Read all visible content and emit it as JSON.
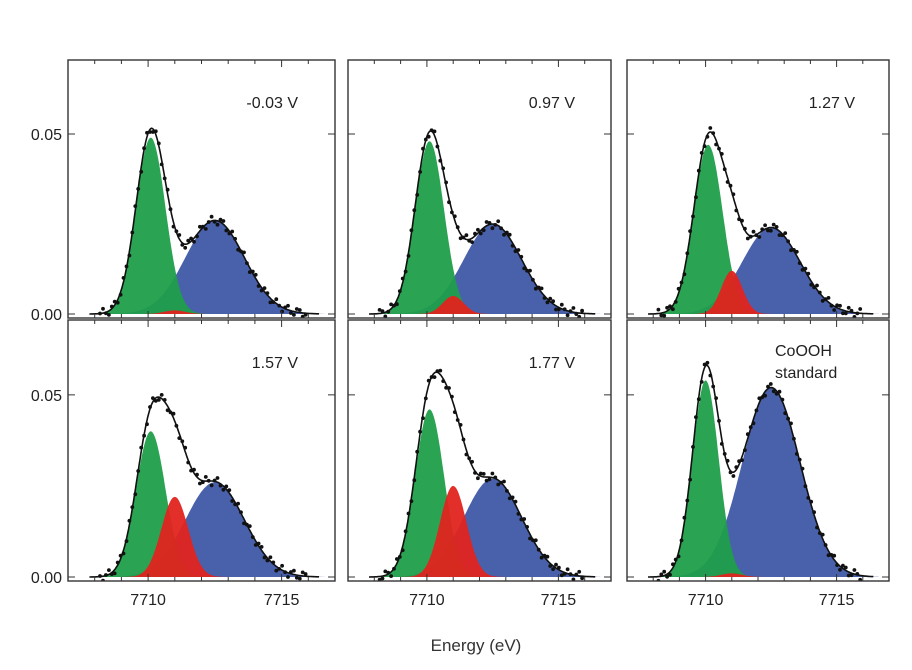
{
  "xlabel": "Energy (eV)",
  "colors": {
    "green": "#1f9e4a",
    "red": "#e0241f",
    "blue": "#3f58a6",
    "fit_line": "#111111",
    "points": "#111111",
    "axis": "#333333"
  },
  "chart_data": [
    {
      "type": "area",
      "label": "-0.03 V",
      "xlim": [
        7707,
        7717
      ],
      "ylim": [
        0,
        0.07
      ],
      "xticks": [],
      "yticks": [
        "0.05",
        "0.00"
      ],
      "series": [
        {
          "name": "",
          "color": "green",
          "peaks": [
            {
              "center": 7710.1,
              "sigma": 0.55,
              "amp": 0.049
            }
          ]
        },
        {
          "name": "",
          "color": "red",
          "peaks": [
            {
              "center": 7711.0,
              "sigma": 0.4,
              "amp": 0.001
            }
          ]
        },
        {
          "name": "",
          "color": "blue",
          "peaks": [
            {
              "center": 7712.5,
              "sigma": 1.1,
              "amp": 0.026
            }
          ]
        }
      ]
    },
    {
      "type": "area",
      "label": "0.97 V",
      "xlim": [
        7707,
        7717
      ],
      "ylim": [
        0,
        0.07
      ],
      "xticks": [],
      "yticks": [],
      "series": [
        {
          "name": "",
          "color": "green",
          "peaks": [
            {
              "center": 7710.1,
              "sigma": 0.55,
              "amp": 0.048
            }
          ]
        },
        {
          "name": "",
          "color": "red",
          "peaks": [
            {
              "center": 7711.0,
              "sigma": 0.4,
              "amp": 0.005
            }
          ]
        },
        {
          "name": "",
          "color": "blue",
          "peaks": [
            {
              "center": 7712.5,
              "sigma": 1.1,
              "amp": 0.025
            }
          ]
        }
      ]
    },
    {
      "type": "area",
      "label": "1.27 V",
      "xlim": [
        7707,
        7717
      ],
      "ylim": [
        0,
        0.07
      ],
      "xticks": [],
      "yticks": [],
      "series": [
        {
          "name": "",
          "color": "green",
          "peaks": [
            {
              "center": 7710.1,
              "sigma": 0.55,
              "amp": 0.047
            }
          ]
        },
        {
          "name": "",
          "color": "red",
          "peaks": [
            {
              "center": 7711.0,
              "sigma": 0.4,
              "amp": 0.012
            }
          ]
        },
        {
          "name": "",
          "color": "blue",
          "peaks": [
            {
              "center": 7712.5,
              "sigma": 1.1,
              "amp": 0.024
            }
          ]
        }
      ]
    },
    {
      "type": "area",
      "label": "1.57 V",
      "xlim": [
        7707,
        7717
      ],
      "ylim": [
        0,
        0.07
      ],
      "xticks": [
        "7710",
        "7715"
      ],
      "yticks": [
        "0.05",
        "0.00"
      ],
      "series": [
        {
          "name": "",
          "color": "green",
          "peaks": [
            {
              "center": 7710.1,
              "sigma": 0.55,
              "amp": 0.04
            }
          ]
        },
        {
          "name": "",
          "color": "red",
          "peaks": [
            {
              "center": 7711.0,
              "sigma": 0.5,
              "amp": 0.022
            }
          ]
        },
        {
          "name": "",
          "color": "blue",
          "peaks": [
            {
              "center": 7712.5,
              "sigma": 1.1,
              "amp": 0.026
            }
          ]
        }
      ]
    },
    {
      "type": "area",
      "label": "1.77 V",
      "xlim": [
        7707,
        7717
      ],
      "ylim": [
        0,
        0.07
      ],
      "xticks": [
        "7710",
        "7715"
      ],
      "yticks": [],
      "series": [
        {
          "name": "",
          "color": "green",
          "peaks": [
            {
              "center": 7710.1,
              "sigma": 0.55,
              "amp": 0.046
            }
          ]
        },
        {
          "name": "",
          "color": "red",
          "peaks": [
            {
              "center": 7711.0,
              "sigma": 0.5,
              "amp": 0.025
            }
          ]
        },
        {
          "name": "",
          "color": "blue",
          "peaks": [
            {
              "center": 7712.5,
              "sigma": 1.1,
              "amp": 0.027
            }
          ]
        }
      ]
    },
    {
      "type": "area",
      "label": "CoOOH\nstandard",
      "xlim": [
        7707,
        7717
      ],
      "ylim": [
        0,
        0.07
      ],
      "xticks": [
        "7710",
        "7715"
      ],
      "yticks": [],
      "series": [
        {
          "name": "",
          "color": "green",
          "peaks": [
            {
              "center": 7710.0,
              "sigma": 0.5,
              "amp": 0.054
            }
          ]
        },
        {
          "name": "",
          "color": "red",
          "peaks": [
            {
              "center": 7711.0,
              "sigma": 0.4,
              "amp": 0.001
            }
          ]
        },
        {
          "name": "",
          "color": "blue",
          "peaks": [
            {
              "center": 7712.5,
              "sigma": 1.1,
              "amp": 0.052
            }
          ]
        }
      ]
    }
  ]
}
